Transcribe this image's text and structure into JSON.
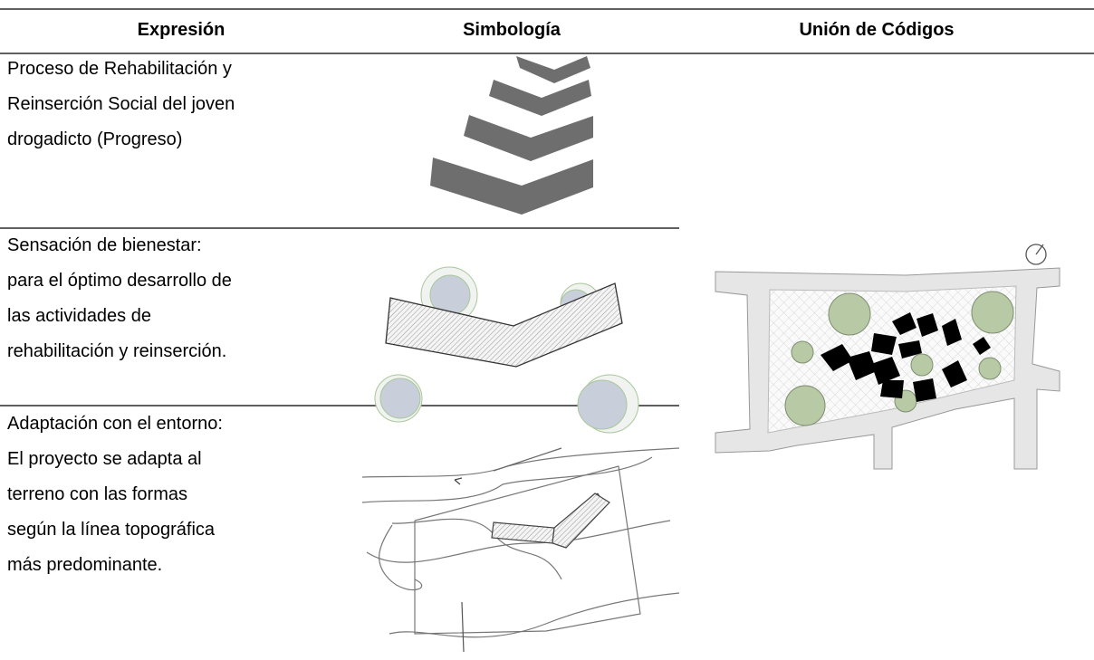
{
  "table": {
    "headers": [
      "Expresión",
      "Simbología",
      "Unión de Códigos"
    ],
    "rows": [
      {
        "expression": [
          "Proceso de Rehabilitación y",
          "Reinserción Social del joven",
          "drogadicto (Progreso)"
        ]
      },
      {
        "expression": [
          "Sensación de bienestar:",
          "para el óptimo desarrollo de",
          "las actividades de",
          "rehabilitación y reinserción."
        ]
      },
      {
        "expression": [
          "Adaptación con el entorno:",
          "El proyecto se adapta al",
          "terreno con las formas",
          "según la línea topográfica",
          "más predominante."
        ]
      }
    ]
  }
}
